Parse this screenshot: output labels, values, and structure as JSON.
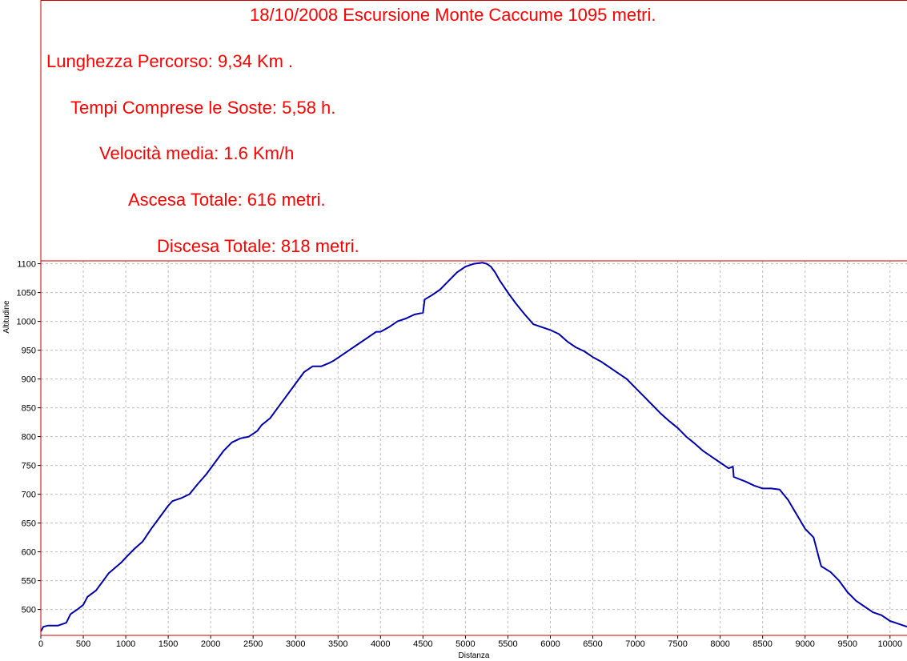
{
  "annotations": [
    "18/10/2008  Escursione Monte Caccume 1095 metri.",
    "Lunghezza Percorso: 9,34 Km .",
    "Tempi Comprese le Soste: 5,58 h.",
    "Velocità media: 1.6 Km/h",
    "Ascesa Totale: 616 metri.",
    "Discesa Totale: 818 metri."
  ],
  "colors": {
    "annotation": "#ff0000",
    "frame": "#cc0000",
    "line": "#0000b0",
    "grid": "#bdbdbd"
  },
  "chart_data": {
    "type": "line",
    "xlabel": "Distanza",
    "ylabel": "Altitudine",
    "xlim": [
      0,
      10200
    ],
    "ylim": [
      455,
      1105
    ],
    "x_ticks": [
      0,
      500,
      1000,
      1500,
      2000,
      2500,
      3000,
      3500,
      4000,
      4500,
      5000,
      5500,
      6000,
      6500,
      7000,
      7500,
      8000,
      8500,
      9000,
      9500,
      10000
    ],
    "y_ticks": [
      500,
      550,
      600,
      650,
      700,
      750,
      800,
      850,
      900,
      950,
      1000,
      1050,
      1100
    ],
    "grid": true,
    "series": [
      {
        "x": [
          0,
          30,
          80,
          200,
          300,
          350,
          430,
          500,
          550,
          650,
          800,
          950,
          1000,
          1100,
          1200,
          1300,
          1400,
          1500,
          1550,
          1650,
          1750,
          1850,
          1950,
          2050,
          2150,
          2250,
          2350,
          2450,
          2550,
          2600,
          2700,
          2800,
          2900,
          3000,
          3100,
          3200,
          3300,
          3400,
          3450,
          3550,
          3650,
          3750,
          3850,
          3950,
          4000,
          4100,
          4200,
          4300,
          4400,
          4500,
          4520,
          4600,
          4700,
          4800,
          4900,
          5000,
          5100,
          5200,
          5250,
          5300,
          5350,
          5400,
          5500,
          5600,
          5700,
          5800,
          5900,
          6000,
          6100,
          6200,
          6300,
          6400,
          6500,
          6600,
          6700,
          6800,
          6900,
          7000,
          7100,
          7200,
          7300,
          7400,
          7500,
          7600,
          7700,
          7800,
          7900,
          8000,
          8100,
          8150,
          8160,
          8300,
          8400,
          8500,
          8600,
          8700,
          8800,
          8900,
          9000,
          9100,
          9180,
          9190,
          9300,
          9400,
          9500,
          9600,
          9700,
          9800,
          9900,
          10000,
          10100,
          10200
        ],
        "y": [
          462,
          470,
          472,
          472,
          477,
          492,
          500,
          508,
          522,
          533,
          563,
          582,
          590,
          605,
          618,
          640,
          660,
          680,
          688,
          693,
          700,
          718,
          735,
          755,
          775,
          790,
          797,
          800,
          810,
          820,
          832,
          852,
          872,
          892,
          912,
          922,
          922,
          928,
          932,
          942,
          952,
          962,
          972,
          982,
          982,
          990,
          1000,
          1005,
          1012,
          1015,
          1038,
          1045,
          1055,
          1070,
          1085,
          1095,
          1100,
          1102,
          1100,
          1095,
          1085,
          1072,
          1050,
          1030,
          1012,
          995,
          990,
          985,
          978,
          965,
          955,
          948,
          938,
          930,
          920,
          910,
          900,
          885,
          870,
          855,
          840,
          827,
          815,
          800,
          788,
          775,
          765,
          755,
          745,
          748,
          730,
          722,
          715,
          710,
          710,
          708,
          690,
          665,
          640,
          625,
          580,
          575,
          565,
          550,
          530,
          515,
          505,
          495,
          490,
          480,
          475,
          470
        ]
      }
    ]
  }
}
